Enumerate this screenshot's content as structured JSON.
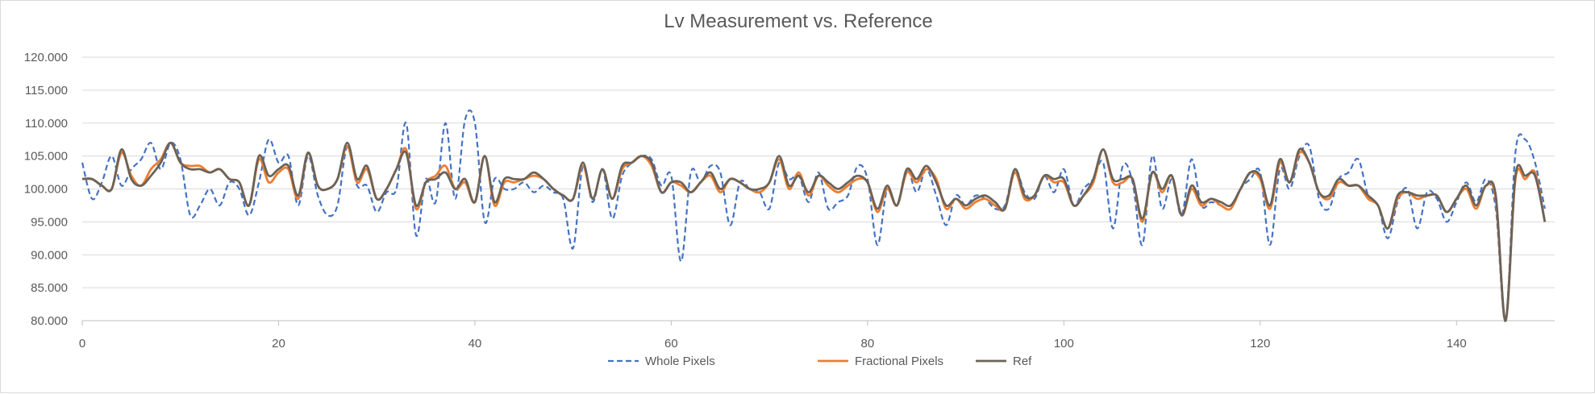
{
  "chart_data": {
    "type": "line",
    "title": "Lv Measurement vs. Reference",
    "xlabel": "",
    "ylabel": "",
    "xlim": [
      0,
      150
    ],
    "ylim": [
      80,
      120
    ],
    "x_ticks": [
      0,
      20,
      40,
      60,
      80,
      100,
      120,
      140
    ],
    "x_tick_labels": [
      "0",
      "20",
      "40",
      "60",
      "80",
      "100",
      "120",
      "140"
    ],
    "y_ticks": [
      80,
      85,
      90,
      95,
      100,
      105,
      110,
      115,
      120
    ],
    "y_tick_labels": [
      "80.000",
      "85.000",
      "90.000",
      "95.000",
      "100.000",
      "105.000",
      "110.000",
      "115.000",
      "120.000"
    ],
    "grid": "horizontal",
    "legend_position": "bottom",
    "x": [
      0,
      1,
      2,
      3,
      4,
      5,
      6,
      7,
      8,
      9,
      10,
      11,
      12,
      13,
      14,
      15,
      16,
      17,
      18,
      19,
      20,
      21,
      22,
      23,
      24,
      25,
      26,
      27,
      28,
      29,
      30,
      31,
      32,
      33,
      34,
      35,
      36,
      37,
      38,
      39,
      40,
      41,
      42,
      43,
      44,
      45,
      46,
      47,
      48,
      49,
      50,
      51,
      52,
      53,
      54,
      55,
      56,
      57,
      58,
      59,
      60,
      61,
      62,
      63,
      64,
      65,
      66,
      67,
      68,
      69,
      70,
      71,
      72,
      73,
      74,
      75,
      76,
      77,
      78,
      79,
      80,
      81,
      82,
      83,
      84,
      85,
      86,
      87,
      88,
      89,
      90,
      91,
      92,
      93,
      94,
      95,
      96,
      97,
      98,
      99,
      100,
      101,
      102,
      103,
      104,
      105,
      106,
      107,
      108,
      109,
      110,
      111,
      112,
      113,
      114,
      115,
      116,
      117,
      118,
      119,
      120,
      121,
      122,
      123,
      124,
      125,
      126,
      127,
      128,
      129,
      130,
      131,
      132,
      133,
      134,
      135,
      136,
      137,
      138,
      139,
      140,
      141,
      142,
      143,
      144,
      145,
      146,
      147,
      148,
      149
    ],
    "series": [
      {
        "name": "Whole Pixels",
        "color": "#4472c4",
        "dash": "dashed",
        "values": [
          104.0,
          98.5,
          101.0,
          105.0,
          100.5,
          103.0,
          104.5,
          107.0,
          103.0,
          107.0,
          104.5,
          96.0,
          97.5,
          100.0,
          97.5,
          101.0,
          100.0,
          96.0,
          101.0,
          107.5,
          104.0,
          105.0,
          97.5,
          105.0,
          99.0,
          96.0,
          97.5,
          106.5,
          100.5,
          100.5,
          96.5,
          99.5,
          100.0,
          110.0,
          93.0,
          101.5,
          98.0,
          110.0,
          98.5,
          110.5,
          110.0,
          95.0,
          101.5,
          100.0,
          100.0,
          101.0,
          99.5,
          100.5,
          99.5,
          98.5,
          91.0,
          103.5,
          98.0,
          103.0,
          95.5,
          102.0,
          104.0,
          105.0,
          104.5,
          100.5,
          102.0,
          89.0,
          102.5,
          101.0,
          103.5,
          102.5,
          94.5,
          101.0,
          100.0,
          99.5,
          97.0,
          104.0,
          101.5,
          102.0,
          98.0,
          102.5,
          97.0,
          98.0,
          99.0,
          103.5,
          101.5,
          91.5,
          100.0,
          97.5,
          103.0,
          99.5,
          103.0,
          99.0,
          94.5,
          99.0,
          97.5,
          99.0,
          98.5,
          97.0,
          97.5,
          103.0,
          99.5,
          98.5,
          102.0,
          99.5,
          103.0,
          97.5,
          100.0,
          101.5,
          104.0,
          94.0,
          103.5,
          101.0,
          91.5,
          105.0,
          97.0,
          101.5,
          96.0,
          104.5,
          97.5,
          98.0,
          97.5,
          97.0,
          100.0,
          101.5,
          102.5,
          91.5,
          103.0,
          100.0,
          105.0,
          106.5,
          98.5,
          97.0,
          101.5,
          102.5,
          104.5,
          99.0,
          97.5,
          92.5,
          98.0,
          100.0,
          94.0,
          99.5,
          98.5,
          95.0,
          98.0,
          101.0,
          98.0,
          101.5,
          97.0,
          80.0,
          105.5,
          107.5,
          104.0,
          97.0
        ]
      },
      {
        "name": "Fractional Pixels",
        "color": "#ed7d31",
        "dash": "solid",
        "values": [
          101.5,
          101.5,
          100.5,
          100.0,
          105.5,
          102.0,
          100.5,
          103.0,
          104.5,
          107.0,
          104.0,
          103.5,
          103.5,
          102.5,
          103.0,
          101.5,
          101.0,
          97.5,
          104.5,
          101.0,
          102.5,
          103.0,
          98.5,
          105.5,
          100.5,
          100.0,
          101.5,
          106.5,
          101.0,
          103.0,
          98.5,
          100.0,
          103.0,
          106.0,
          97.0,
          101.0,
          102.0,
          103.5,
          100.0,
          101.0,
          98.0,
          105.0,
          97.5,
          101.0,
          101.0,
          101.5,
          102.0,
          101.5,
          100.0,
          99.0,
          98.5,
          103.5,
          98.5,
          103.0,
          98.5,
          103.0,
          104.0,
          105.0,
          103.5,
          99.5,
          101.0,
          100.5,
          99.5,
          101.0,
          102.0,
          99.5,
          101.5,
          101.0,
          100.0,
          99.5,
          101.0,
          104.5,
          100.0,
          102.5,
          99.0,
          102.0,
          100.5,
          99.5,
          100.5,
          101.5,
          101.0,
          96.5,
          100.0,
          97.5,
          102.5,
          101.0,
          103.0,
          101.5,
          97.0,
          98.5,
          97.0,
          98.0,
          98.5,
          97.5,
          97.0,
          102.5,
          98.5,
          99.0,
          102.0,
          101.0,
          101.0,
          97.5,
          99.0,
          101.0,
          106.0,
          101.0,
          101.0,
          101.5,
          95.0,
          102.5,
          99.5,
          102.0,
          96.0,
          100.0,
          97.5,
          98.5,
          97.5,
          97.0,
          100.0,
          102.5,
          101.5,
          97.0,
          104.0,
          101.0,
          105.5,
          104.0,
          99.5,
          98.5,
          101.0,
          100.5,
          100.5,
          98.5,
          97.5,
          94.0,
          98.5,
          99.5,
          98.5,
          99.0,
          99.0,
          96.5,
          98.5,
          100.0,
          97.0,
          100.5,
          98.5,
          80.0,
          101.5,
          101.5,
          102.5,
          95.0
        ]
      },
      {
        "name": "Ref",
        "color": "#6b6358",
        "dash": "solid",
        "values": [
          101.5,
          101.5,
          100.5,
          100.0,
          106.0,
          101.5,
          100.5,
          102.0,
          104.0,
          107.0,
          104.0,
          103.0,
          103.0,
          102.5,
          103.0,
          101.5,
          101.0,
          97.5,
          105.0,
          102.0,
          103.0,
          103.5,
          99.0,
          105.5,
          100.5,
          100.0,
          101.5,
          107.0,
          101.5,
          103.5,
          98.5,
          100.0,
          103.0,
          105.5,
          97.5,
          101.0,
          101.5,
          102.5,
          100.0,
          101.5,
          98.0,
          105.0,
          98.0,
          101.5,
          101.5,
          101.5,
          102.5,
          101.5,
          100.0,
          99.0,
          98.5,
          104.0,
          98.5,
          103.0,
          98.5,
          103.5,
          104.0,
          105.0,
          104.0,
          99.5,
          101.0,
          101.0,
          99.5,
          101.0,
          102.5,
          100.0,
          101.5,
          101.0,
          100.0,
          100.0,
          101.0,
          105.0,
          100.5,
          102.0,
          99.5,
          102.0,
          101.0,
          100.0,
          101.0,
          102.0,
          101.0,
          97.0,
          100.5,
          97.5,
          103.0,
          101.5,
          103.5,
          101.0,
          97.5,
          98.5,
          97.5,
          98.5,
          99.0,
          98.0,
          97.0,
          103.0,
          99.0,
          99.0,
          102.0,
          101.5,
          101.5,
          97.5,
          99.0,
          101.5,
          106.0,
          101.5,
          101.5,
          101.5,
          95.5,
          102.5,
          100.0,
          102.0,
          96.0,
          100.5,
          98.0,
          98.5,
          98.0,
          97.5,
          100.0,
          102.5,
          102.0,
          97.5,
          104.5,
          101.0,
          106.0,
          104.0,
          99.5,
          99.0,
          101.5,
          100.5,
          100.5,
          99.0,
          97.5,
          94.0,
          99.0,
          99.5,
          99.0,
          99.0,
          99.0,
          96.5,
          98.5,
          100.5,
          97.5,
          100.5,
          99.0,
          80.0,
          102.0,
          102.0,
          102.0,
          95.0
        ]
      }
    ]
  }
}
